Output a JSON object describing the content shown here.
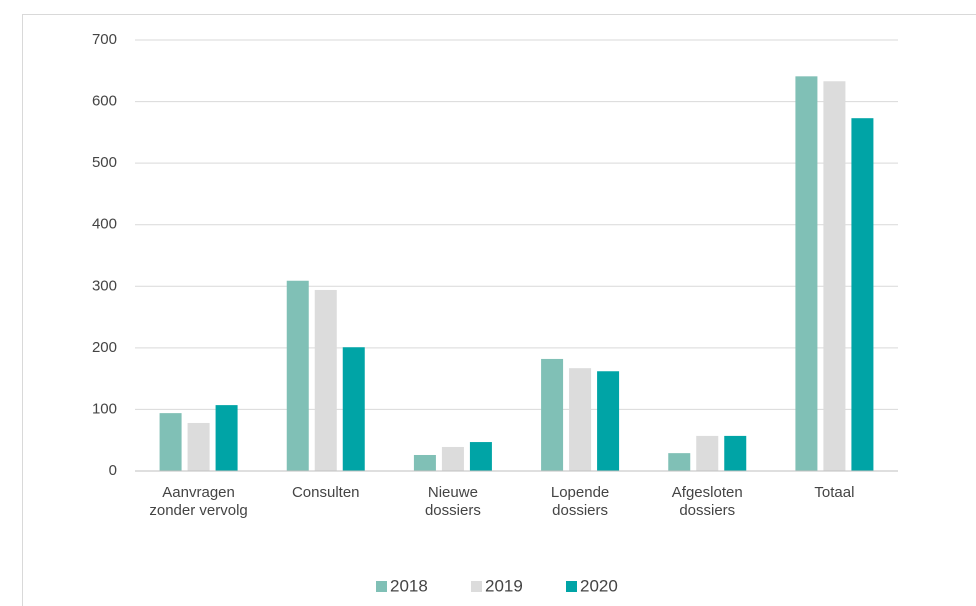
{
  "chart_data": {
    "type": "bar",
    "categories": [
      "Aanvragen\nzonder vervolg",
      "Consulten",
      "Nieuwe\ndossiers",
      "Lopende\ndossiers",
      "Afgesloten\ndossiers",
      "Totaal"
    ],
    "series": [
      {
        "name": "2018",
        "color": "#80c0b6",
        "values": [
          94,
          309,
          26,
          182,
          29,
          641
        ]
      },
      {
        "name": "2019",
        "color": "#dcdcdc",
        "values": [
          78,
          294,
          39,
          167,
          57,
          633
        ]
      },
      {
        "name": "2020",
        "color": "#00a4a6",
        "values": [
          107,
          201,
          47,
          162,
          57,
          573
        ]
      }
    ],
    "ylim": [
      0,
      700
    ],
    "yticks": [
      0,
      100,
      200,
      300,
      400,
      500,
      600,
      700
    ],
    "grid": true,
    "legend": "bottom"
  }
}
